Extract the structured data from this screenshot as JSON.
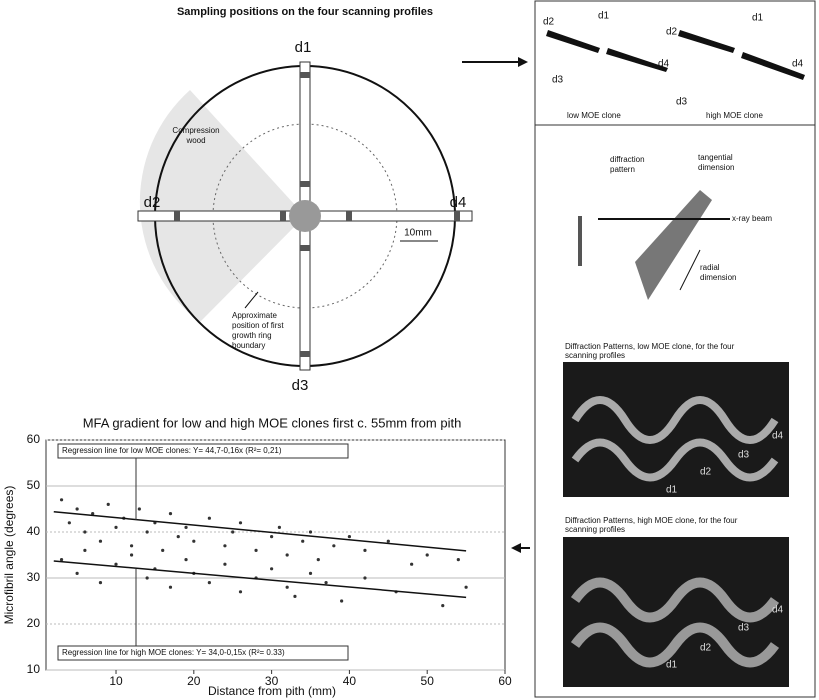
{
  "diagram": {
    "title": "Sampling positions on the four scanning profiles",
    "profiles": {
      "d1": "d1",
      "d2": "d2",
      "d3": "d3",
      "d4": "d4"
    },
    "scale": "10mm",
    "compression_wood": [
      "Compression",
      "wood"
    ],
    "ring_boundary": [
      "Approximate",
      "position of first",
      "growth ring",
      "boundary"
    ],
    "top_panel": {
      "d2a": "d2",
      "d1a": "d1",
      "d3a": "d3",
      "d4a": "d4",
      "d2b": "d2",
      "d1b": "d1",
      "d3b": "d3",
      "d4b": "d4",
      "low": "low MOE clone",
      "high": "high MOE clone"
    },
    "setup": {
      "pattern": [
        "diffraction",
        "pattern"
      ],
      "tangential": [
        "tangential",
        "dimension"
      ],
      "beam": "x-ray beam",
      "radial": [
        "radial",
        "dimension"
      ]
    },
    "low_panel": {
      "caption": [
        "Diffraction Patterns, low MOE clone, for the four",
        "scanning profiles"
      ],
      "d4": "d4",
      "d3": "d3",
      "d2": "d2",
      "d1": "d1"
    },
    "high_panel": {
      "caption": [
        "Diffraction Patterns, high MOE clone, for the four",
        "scanning profiles"
      ],
      "d4": "d4",
      "d3": "d3",
      "d2": "d2",
      "d1": "d1"
    }
  },
  "chart_data": {
    "type": "scatter",
    "title": "MFA gradient for low and high MOE clones first c. 55mm from pith",
    "x_label": "Distance from pith (mm)",
    "y_label": "Microfibril angle (degrees)",
    "xlim": [
      1,
      60
    ],
    "ylim": [
      10,
      60
    ],
    "xticks": [
      10,
      20,
      30,
      40,
      50,
      60
    ],
    "yticks": [
      10,
      20,
      30,
      40,
      50,
      60
    ],
    "grid": true,
    "series": [
      {
        "type": "scatter",
        "color": "#333",
        "x": [
          3,
          4,
          5,
          6,
          7,
          8,
          9,
          10,
          11,
          12,
          13,
          14,
          15,
          16,
          17,
          18,
          19,
          20,
          22,
          24,
          25,
          26,
          28,
          30,
          31,
          32,
          34,
          35,
          36,
          38,
          40,
          42,
          45,
          48,
          50,
          54,
          3,
          5,
          6,
          8,
          10,
          12,
          14,
          15,
          17,
          19,
          20,
          22,
          24,
          26,
          28,
          30,
          32,
          33,
          35,
          37,
          39,
          42,
          46,
          52,
          55
        ],
        "values": [
          47,
          42,
          45,
          40,
          44,
          38,
          46,
          41,
          43,
          37,
          45,
          40,
          42,
          36,
          44,
          39,
          41,
          38,
          43,
          37,
          40,
          42,
          36,
          39,
          41,
          35,
          38,
          40,
          34,
          37,
          39,
          36,
          38,
          33,
          35,
          34,
          34,
          31,
          36,
          29,
          33,
          35,
          30,
          32,
          28,
          34,
          31,
          29,
          33,
          27,
          30,
          32,
          28,
          26,
          31,
          29,
          25,
          30,
          27,
          24,
          28
        ]
      },
      {
        "type": "line",
        "color": "#111",
        "x": [
          2,
          55
        ],
        "values": [
          44.4,
          35.9
        ]
      },
      {
        "type": "line",
        "color": "#111",
        "x": [
          2,
          55
        ],
        "values": [
          33.7,
          25.8
        ]
      }
    ],
    "annotations": [
      "Regression line for low MOE clones: Y= 44,7-0,16x (R²= 0,21)",
      "Regression line for high MOE clones: Y= 34,0-0,15x (R²= 0.33)"
    ]
  }
}
